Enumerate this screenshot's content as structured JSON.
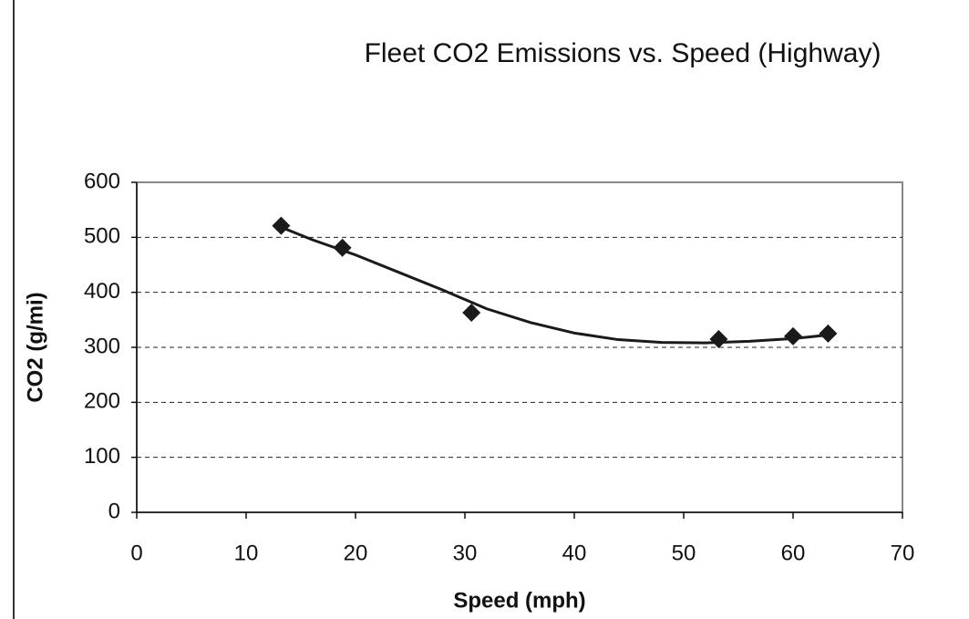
{
  "chart_data": {
    "type": "scatter",
    "title": "Fleet CO2 Emissions  vs. Speed (Highway)",
    "x_label": "Speed (mph)",
    "y_label": "CO2 (g/mi)",
    "series": [
      {
        "color": "#1a1a1a",
        "x": [
          13.2,
          18.8,
          30.6,
          53.2,
          60,
          63.2
        ],
        "values": [
          521,
          481,
          363,
          315,
          320,
          325
        ]
      }
    ],
    "trendline": {
      "color": "#1a1a1a",
      "x": [
        13,
        16,
        20,
        24,
        28,
        32,
        36,
        40,
        44,
        48,
        52,
        56,
        60,
        63
      ],
      "values": [
        520,
        496,
        468,
        436,
        404,
        370,
        345,
        326,
        314,
        309,
        308,
        311,
        316,
        322
      ]
    },
    "xlim": [
      0,
      70
    ],
    "xticks": [
      0,
      10,
      20,
      30,
      40,
      50,
      60,
      70
    ],
    "ylim": [
      0,
      600
    ],
    "yticks": [
      0,
      100,
      200,
      300,
      400,
      500,
      600
    ],
    "grid": true
  }
}
